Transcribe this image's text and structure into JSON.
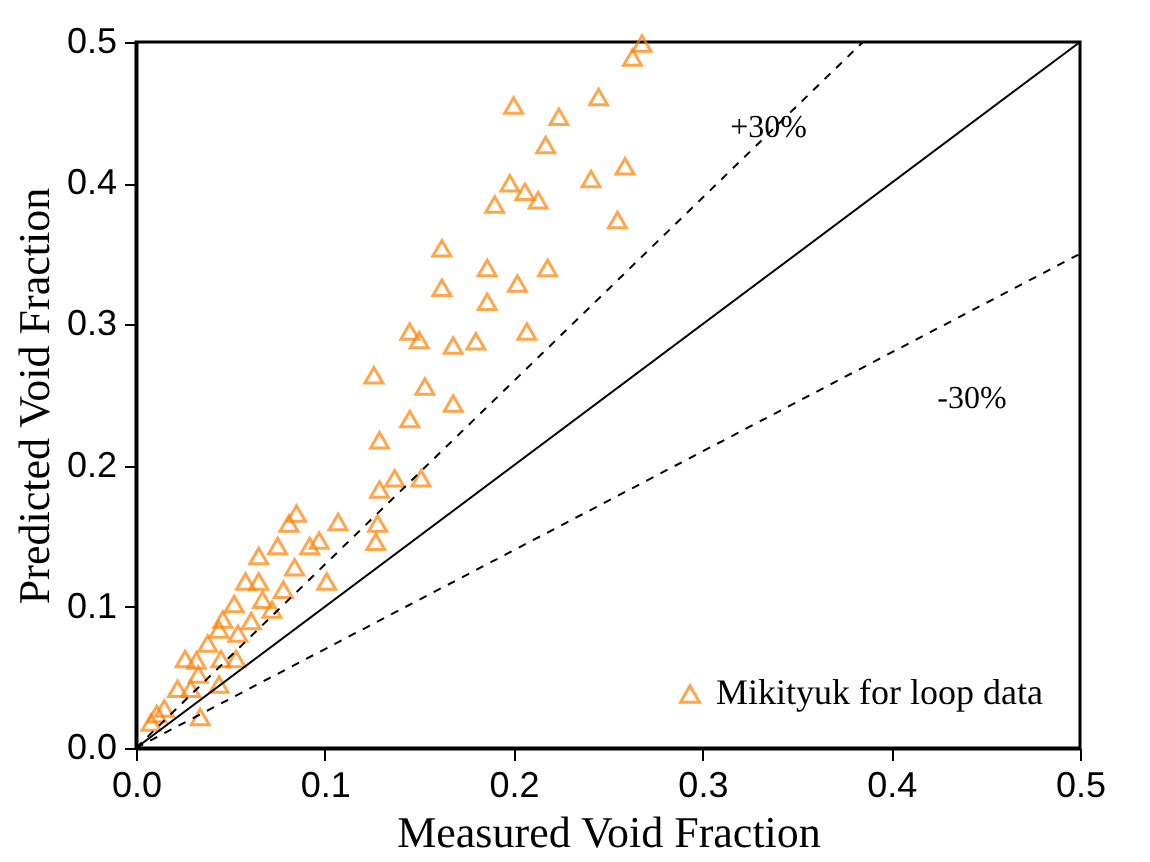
{
  "chart_data": {
    "type": "scatter",
    "xlabel": "Measured Void Fraction",
    "ylabel": "Predicted Void Fraction",
    "xlim": [
      0,
      0.5
    ],
    "ylim": [
      0,
      0.5
    ],
    "xticks": [
      {
        "value": 0,
        "label": "0.0"
      },
      0.1,
      0.2,
      0.3,
      0.4,
      0.5
    ],
    "yticks": [
      {
        "value": 0,
        "label": "0.0"
      },
      0.1,
      0.2,
      0.3,
      0.4,
      0.5
    ],
    "grid": false,
    "legend": "bottom right",
    "marker": "triangle",
    "annotations": [
      {
        "text": "+30%",
        "x": 0.335,
        "y": 0.44
      },
      "-30%"
    ],
    "series": [
      {
        "name": "Mikityuk for loop data",
        "color": "#ff8000",
        "x": [
          0.263,
          0.245,
          0.2,
          0.224,
          0.217,
          0.259,
          0.241,
          0.198,
          0.206,
          0.213,
          0.19,
          0.255,
          0.162,
          0.186,
          0.218,
          0.162,
          0.202,
          0.186,
          0.145,
          0.15,
          0.207,
          0.168,
          0.18,
          0.126,
          0.153,
          0.168,
          0.145,
          0.129,
          0.137,
          0.151,
          0.129,
          0.107,
          0.085,
          0.081,
          0.128,
          0.127,
          0.097,
          0.075,
          0.092,
          0.065,
          0.084,
          0.101,
          0.058,
          0.065,
          0.078,
          0.067,
          0.052,
          0.072,
          0.061,
          0.046,
          0.044,
          0.054,
          0.038,
          0.045,
          0.053,
          0.026,
          0.032,
          0.033,
          0.044,
          0.022,
          0.029,
          0.015,
          0.011,
          0.034,
          0.008,
          0.268
        ],
        "values": [
          0.489,
          0.461,
          0.455,
          0.447,
          0.427,
          0.412,
          0.403,
          0.4,
          0.394,
          0.388,
          0.385,
          0.374,
          0.354,
          0.34,
          0.34,
          0.326,
          0.329,
          0.316,
          0.295,
          0.289,
          0.295,
          0.285,
          0.288,
          0.264,
          0.256,
          0.244,
          0.233,
          0.218,
          0.191,
          0.191,
          0.183,
          0.16,
          0.166,
          0.159,
          0.159,
          0.146,
          0.147,
          0.143,
          0.143,
          0.136,
          0.128,
          0.118,
          0.118,
          0.118,
          0.112,
          0.105,
          0.102,
          0.098,
          0.09,
          0.091,
          0.084,
          0.081,
          0.074,
          0.063,
          0.063,
          0.063,
          0.062,
          0.052,
          0.045,
          0.042,
          0.042,
          0.028,
          0.024,
          0.022,
          0.018,
          0.499
        ]
      },
      {
        "type": "line",
        "color": "#000000",
        "line_style": "solid",
        "marker": "none",
        "x": [
          0,
          0.5
        ],
        "values": [
          0,
          0.5
        ]
      },
      {
        "type": "line",
        "color": "#000000",
        "line_style": "dashed",
        "marker": "none",
        "x": [
          0,
          0.385
        ],
        "values": [
          0,
          0.5
        ]
      },
      {
        "type": "line",
        "color": "#000000",
        "line_style": "dashed",
        "marker": "none",
        "x": [
          0,
          0.5
        ],
        "values": [
          0,
          0.35
        ]
      }
    ]
  }
}
